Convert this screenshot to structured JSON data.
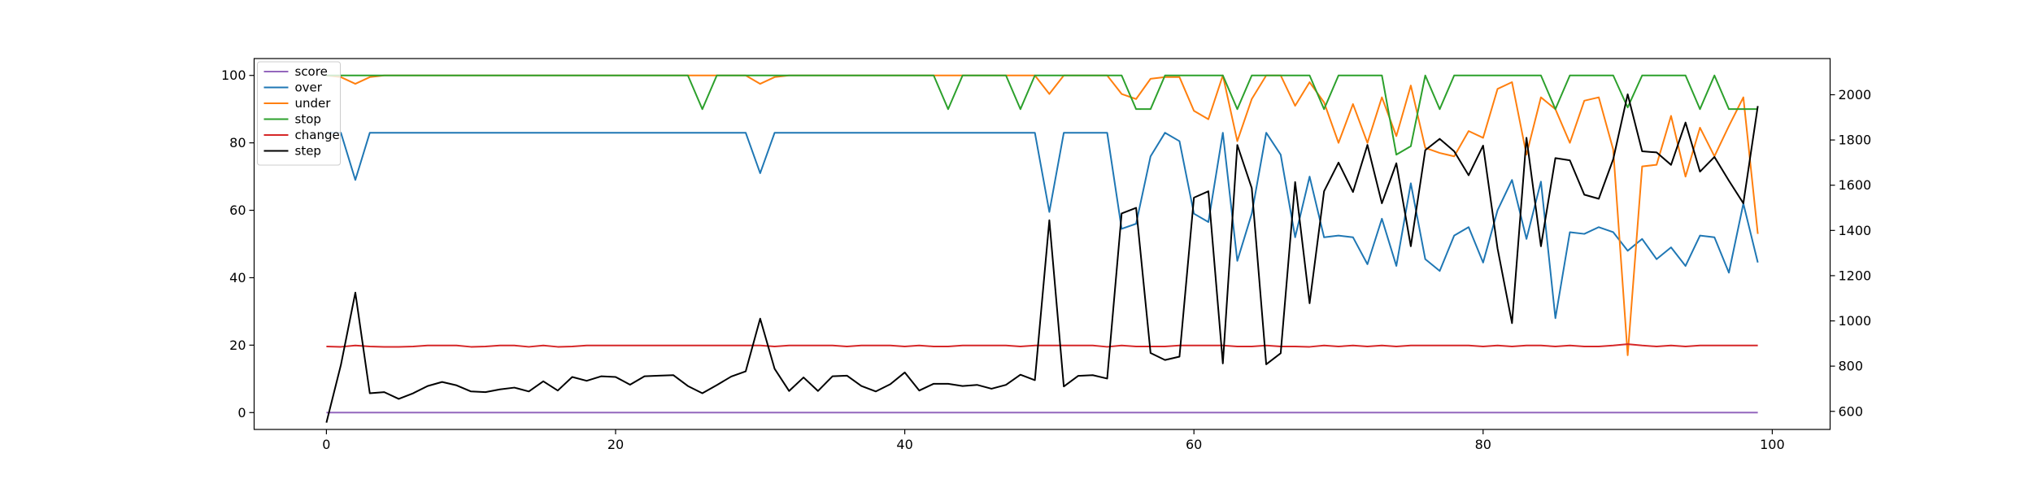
{
  "chart_data": {
    "type": "line",
    "x": [
      0,
      1,
      2,
      3,
      4,
      5,
      6,
      7,
      8,
      9,
      10,
      11,
      12,
      13,
      14,
      15,
      16,
      17,
      18,
      19,
      20,
      21,
      22,
      23,
      24,
      25,
      26,
      27,
      28,
      29,
      30,
      31,
      32,
      33,
      34,
      35,
      36,
      37,
      38,
      39,
      40,
      41,
      42,
      43,
      44,
      45,
      46,
      47,
      48,
      49,
      50,
      51,
      52,
      53,
      54,
      55,
      56,
      57,
      58,
      59,
      60,
      61,
      62,
      63,
      64,
      65,
      66,
      67,
      68,
      69,
      70,
      71,
      72,
      73,
      74,
      75,
      76,
      77,
      78,
      79,
      80,
      81,
      82,
      83,
      84,
      85,
      86,
      87,
      88,
      89,
      90,
      91,
      92,
      93,
      94,
      95,
      96,
      97,
      98,
      99
    ],
    "xlim": [
      -5,
      104
    ],
    "x_ticks": [
      0,
      20,
      40,
      60,
      80,
      100
    ],
    "left_axis": {
      "ylim": [
        -5,
        105
      ],
      "ticks": [
        0,
        20,
        40,
        60,
        80,
        100
      ]
    },
    "right_axis": {
      "ylim": [
        520,
        2160
      ],
      "ticks": [
        600,
        800,
        1000,
        1200,
        1400,
        1600,
        1800,
        2000
      ]
    },
    "grid": false,
    "legend_position": "upper-left",
    "series": [
      {
        "name": "score",
        "color": "#9467bd",
        "axis": "left",
        "values": [
          0,
          0,
          0,
          0,
          0,
          0,
          0,
          0,
          0,
          0,
          0,
          0,
          0,
          0,
          0,
          0,
          0,
          0,
          0,
          0,
          0,
          0,
          0,
          0,
          0,
          0,
          0,
          0,
          0,
          0,
          0,
          0,
          0,
          0,
          0,
          0,
          0,
          0,
          0,
          0,
          0,
          0,
          0,
          0,
          0,
          0,
          0,
          0,
          0,
          0,
          0,
          0,
          0,
          0,
          0,
          0,
          0,
          0,
          0,
          0,
          0,
          0,
          0,
          0,
          0,
          0,
          0,
          0,
          0,
          0,
          0,
          0,
          0,
          0,
          0,
          0,
          0,
          0,
          0,
          0,
          0,
          0,
          0,
          0,
          0,
          0,
          0,
          0,
          0,
          0,
          0,
          0,
          0,
          0,
          0,
          0,
          0,
          0,
          0,
          0
        ]
      },
      {
        "name": "over",
        "color": "#1f77b4",
        "axis": "left",
        "values": [
          83,
          83,
          69,
          83,
          83,
          83,
          83,
          83,
          83,
          83,
          83,
          83,
          83,
          83,
          83,
          83,
          83,
          83,
          83,
          83,
          83,
          83,
          83,
          83,
          83,
          83,
          83,
          83,
          83,
          83,
          71,
          83,
          83,
          83,
          83,
          83,
          83,
          83,
          83,
          83,
          83,
          83,
          83,
          83,
          83,
          83,
          83,
          83,
          83,
          83,
          59.5,
          83,
          83,
          83,
          83,
          54.5,
          56,
          76,
          83,
          80.5,
          59,
          56.5,
          83,
          45,
          59,
          83,
          76.5,
          52,
          70,
          52,
          52.5,
          52,
          44,
          57.5,
          43.5,
          68,
          45.5,
          42,
          52.5,
          55,
          44.5,
          60,
          69,
          51.5,
          68.5,
          28,
          53.5,
          53,
          55,
          53.5,
          48,
          51.5,
          45.5,
          49,
          43.5,
          52.5,
          52,
          41.5,
          62,
          44.5
        ]
      },
      {
        "name": "under",
        "color": "#ff7f0e",
        "axis": "left",
        "values": [
          100,
          99.5,
          97.5,
          99.5,
          100,
          100,
          100,
          100,
          100,
          100,
          100,
          100,
          100,
          100,
          100,
          100,
          100,
          100,
          100,
          100,
          100,
          100,
          100,
          100,
          100,
          100,
          100,
          100,
          100,
          100,
          97.5,
          99.5,
          100,
          100,
          100,
          100,
          100,
          100,
          100,
          100,
          100,
          100,
          100,
          100,
          100,
          100,
          100,
          100,
          100,
          100,
          94.5,
          100,
          100,
          100,
          100,
          94.5,
          93,
          99,
          99.5,
          99.5,
          89.5,
          87,
          100,
          80.5,
          93,
          100,
          100,
          91,
          98,
          92,
          80,
          91.5,
          80,
          93.5,
          82,
          97,
          78.5,
          77,
          76,
          83.5,
          81.5,
          96,
          98,
          76.5,
          93.5,
          90,
          80,
          92.5,
          93.5,
          78,
          17,
          73,
          73.5,
          88,
          70,
          84.5,
          76,
          85,
          93.5,
          53
        ]
      },
      {
        "name": "stop",
        "color": "#2ca02c",
        "axis": "left",
        "values": [
          100,
          100,
          100,
          100,
          100,
          100,
          100,
          100,
          100,
          100,
          100,
          100,
          100,
          100,
          100,
          100,
          100,
          100,
          100,
          100,
          100,
          100,
          100,
          100,
          100,
          100,
          90,
          100,
          100,
          100,
          100,
          100,
          100,
          100,
          100,
          100,
          100,
          100,
          100,
          100,
          100,
          100,
          100,
          90,
          100,
          100,
          100,
          100,
          90,
          100,
          100,
          100,
          100,
          100,
          100,
          100,
          90,
          90,
          100,
          100,
          100,
          100,
          100,
          90,
          100,
          100,
          100,
          100,
          100,
          90,
          100,
          100,
          100,
          100,
          76.5,
          79,
          100,
          90,
          100,
          100,
          100,
          100,
          100,
          100,
          100,
          90,
          100,
          100,
          100,
          100,
          90.5,
          100,
          100,
          100,
          100,
          90,
          100,
          90,
          90,
          90
        ]
      },
      {
        "name": "change",
        "color": "#d62728",
        "axis": "left",
        "values": [
          19.6,
          19.5,
          19.9,
          19.6,
          19.5,
          19.5,
          19.6,
          19.9,
          19.9,
          19.9,
          19.5,
          19.6,
          19.9,
          19.9,
          19.5,
          19.9,
          19.5,
          19.6,
          19.9,
          19.9,
          19.9,
          19.9,
          19.9,
          19.9,
          19.9,
          19.9,
          19.9,
          19.9,
          19.9,
          19.9,
          19.9,
          19.6,
          19.9,
          19.9,
          19.9,
          19.9,
          19.6,
          19.9,
          19.9,
          19.9,
          19.6,
          19.9,
          19.6,
          19.6,
          19.9,
          19.9,
          19.9,
          19.9,
          19.6,
          19.9,
          19.9,
          19.9,
          19.9,
          19.9,
          19.5,
          19.9,
          19.6,
          19.6,
          19.6,
          19.9,
          19.9,
          19.9,
          19.9,
          19.6,
          19.6,
          19.9,
          19.6,
          19.6,
          19.5,
          19.9,
          19.6,
          19.9,
          19.6,
          19.9,
          19.6,
          19.9,
          19.9,
          19.9,
          19.9,
          19.9,
          19.6,
          19.9,
          19.6,
          19.9,
          19.9,
          19.6,
          19.9,
          19.6,
          19.6,
          19.9,
          20.3,
          19.9,
          19.6,
          19.9,
          19.6,
          19.9,
          19.9,
          19.9,
          19.9,
          19.9
        ]
      },
      {
        "name": "step",
        "color": "#000000",
        "axis": "right",
        "values": [
          550,
          805,
          1125,
          680,
          685,
          655,
          680,
          712,
          730,
          715,
          688,
          685,
          697,
          705,
          688,
          733,
          692,
          752,
          735,
          755,
          752,
          718,
          755,
          758,
          760,
          712,
          680,
          716,
          754,
          777,
          1010,
          788,
          690,
          750,
          690,
          755,
          758,
          712,
          688,
          720,
          772,
          692,
          722,
          722,
          712,
          717,
          700,
          717,
          762,
          738,
          1445,
          710,
          757,
          760,
          745,
          1475,
          1500,
          858,
          827,
          842,
          1545,
          1573,
          812,
          1778,
          1587,
          808,
          857,
          1614,
          1078,
          1573,
          1700,
          1570,
          1778,
          1520,
          1697,
          1330,
          1755,
          1805,
          1750,
          1644,
          1775,
          1320,
          990,
          1810,
          1330,
          1720,
          1710,
          1558,
          1540,
          1715,
          2002,
          1750,
          1745,
          1690,
          1877,
          1660,
          1725,
          1620,
          1520,
          1950
        ]
      }
    ]
  }
}
